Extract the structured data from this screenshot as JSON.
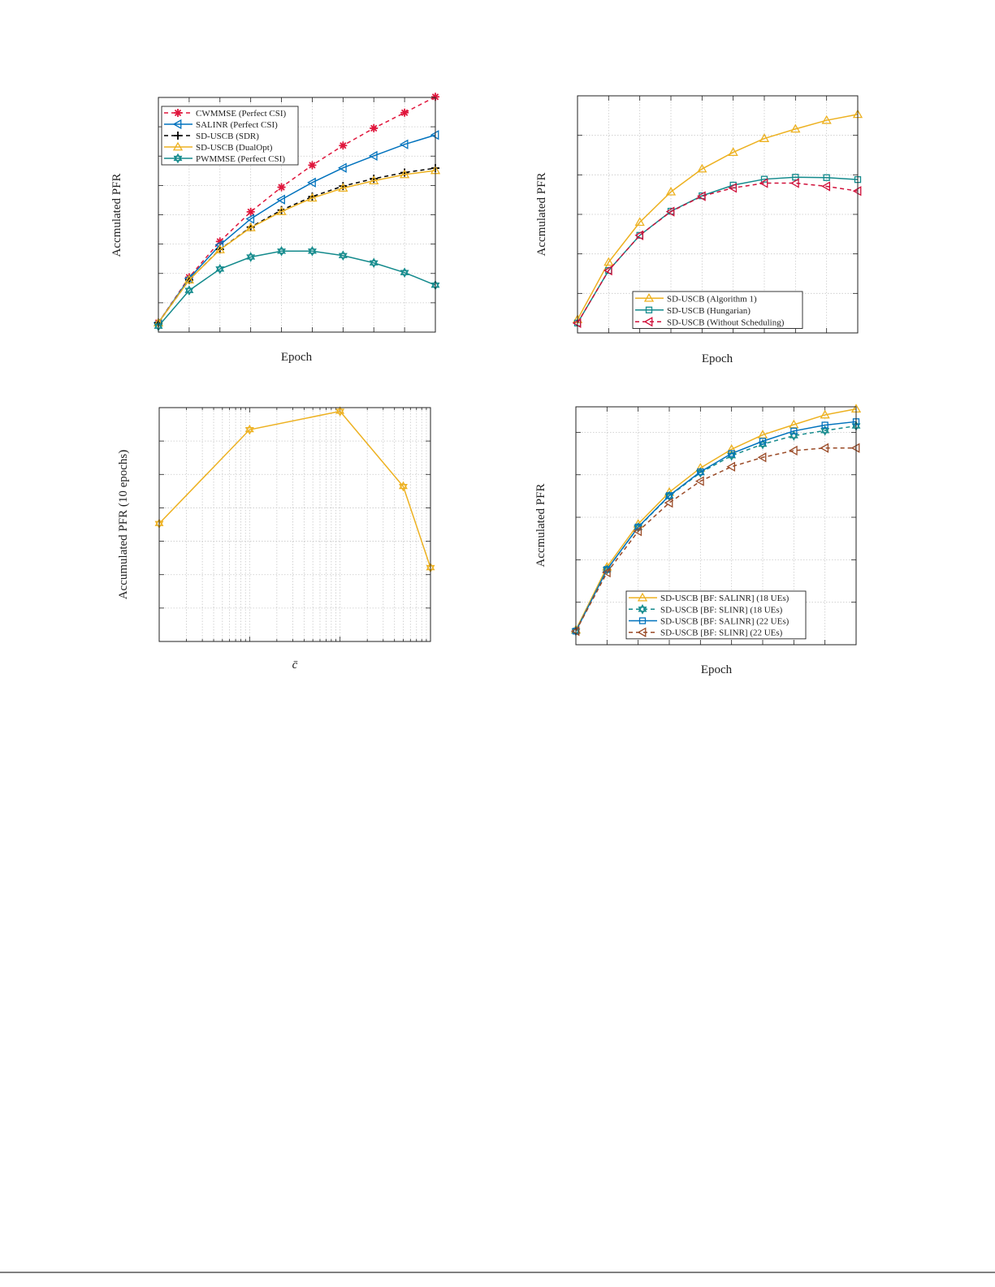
{
  "chart_data": [
    {
      "type": "line",
      "xlabel": "Epoch",
      "ylabel": "Accmulated PFR",
      "xscale": "linear",
      "xlim": [
        1,
        10
      ],
      "ylim": [
        0,
        8
      ],
      "grid": true,
      "tick_labels_shown": false,
      "legend": "top-left",
      "series": [
        {
          "name": "CWMMSE (Perfect CSI)",
          "color": "#e0163c",
          "marker": "asterisk",
          "dash": true,
          "x": [
            1,
            2,
            3,
            4,
            5,
            6,
            7,
            8,
            9,
            10
          ],
          "y": [
            0.32,
            1.87,
            3.09,
            4.1,
            4.94,
            5.69,
            6.36,
            6.95,
            7.48,
            8.02
          ]
        },
        {
          "name": "SALINR (Perfect CSI)",
          "color": "#0072bd",
          "marker": "triangle-left",
          "dash": false,
          "x": [
            1,
            2,
            3,
            4,
            5,
            6,
            7,
            8,
            9,
            10
          ],
          "y": [
            0.32,
            1.83,
            2.97,
            3.86,
            4.52,
            5.1,
            5.6,
            6.01,
            6.4,
            6.72
          ]
        },
        {
          "name": "SD-USCB (SDR)",
          "color": "#000000",
          "marker": "plus",
          "dash": true,
          "x": [
            1,
            2,
            3,
            4,
            5,
            6,
            7,
            8,
            9,
            10
          ],
          "y": [
            0.32,
            1.78,
            2.82,
            3.58,
            4.16,
            4.62,
            4.98,
            5.23,
            5.44,
            5.59
          ]
        },
        {
          "name": "SD-USCB (DualOpt)",
          "color": "#edb120",
          "marker": "triangle-up",
          "dash": false,
          "x": [
            1,
            2,
            3,
            4,
            5,
            6,
            7,
            8,
            9,
            10
          ],
          "y": [
            0.32,
            1.78,
            2.81,
            3.56,
            4.11,
            4.57,
            4.91,
            5.16,
            5.37,
            5.51
          ]
        },
        {
          "name": "PWMMSE (Perfect CSI)",
          "color": "#138a8c",
          "marker": "hexagram",
          "dash": false,
          "x": [
            1,
            2,
            3,
            4,
            5,
            6,
            7,
            8,
            9,
            10
          ],
          "y": [
            0.2,
            1.42,
            2.15,
            2.56,
            2.76,
            2.76,
            2.61,
            2.36,
            2.03,
            1.6
          ]
        }
      ]
    },
    {
      "type": "line",
      "xlabel": "Epoch",
      "ylabel": "Accmulated PFR",
      "xscale": "linear",
      "xlim": [
        1,
        10
      ],
      "ylim": [
        0,
        6
      ],
      "grid": true,
      "tick_labels_shown": false,
      "legend": "bottom-center",
      "series": [
        {
          "name": "SD-USCB (Algorithm 1)",
          "color": "#edb120",
          "marker": "triangle-up",
          "dash": false,
          "x": [
            1,
            2,
            3,
            4,
            5,
            6,
            7,
            8,
            9,
            10
          ],
          "y": [
            0.34,
            1.79,
            2.8,
            3.57,
            4.15,
            4.57,
            4.92,
            5.16,
            5.38,
            5.53
          ]
        },
        {
          "name": "SD-USCB (Hungarian)",
          "color": "#138a8c",
          "marker": "square",
          "dash": false,
          "x": [
            1,
            2,
            3,
            4,
            5,
            6,
            7,
            8,
            9,
            10
          ],
          "y": [
            0.25,
            1.58,
            2.47,
            3.08,
            3.47,
            3.74,
            3.89,
            3.94,
            3.93,
            3.88
          ]
        },
        {
          "name": "SD-USCB (Without Scheduling)",
          "color": "#d0103a",
          "marker": "triangle-left",
          "dash": true,
          "x": [
            1,
            2,
            3,
            4,
            5,
            6,
            7,
            8,
            9,
            10
          ],
          "y": [
            0.25,
            1.58,
            2.47,
            3.07,
            3.46,
            3.67,
            3.79,
            3.79,
            3.71,
            3.59
          ]
        }
      ]
    },
    {
      "type": "line",
      "xlabel": "c̄",
      "ylabel": "Accumulated PFR (10 epochs)",
      "xscale": "log",
      "xlim": [
        1,
        1000
      ],
      "ylim": [
        0,
        7
      ],
      "grid": true,
      "tick_labels_shown": false,
      "legend": "none",
      "series": [
        {
          "color": "#edb120",
          "marker": "hexagram",
          "dash": false,
          "x": [
            1,
            10,
            100,
            500,
            1000
          ],
          "y": [
            3.53,
            6.34,
            6.89,
            4.64,
            2.21
          ]
        }
      ]
    },
    {
      "type": "line",
      "xlabel": "Epoch",
      "ylabel": "Accmulated PFR",
      "xscale": "linear",
      "xlim": [
        1,
        10
      ],
      "ylim": [
        0,
        5.6
      ],
      "grid": true,
      "tick_labels_shown": false,
      "legend": "bottom-center",
      "series": [
        {
          "name": "SD-USCB [BF: SALINR] (18 UEs)",
          "color": "#edb120",
          "marker": "triangle-up",
          "dash": false,
          "x": [
            1,
            2,
            3,
            4,
            5,
            6,
            7,
            8,
            9,
            10
          ],
          "y": [
            0.35,
            1.83,
            2.84,
            3.59,
            4.16,
            4.6,
            4.94,
            5.18,
            5.41,
            5.55
          ]
        },
        {
          "name": "SD-USCB [BF: SLINR] (18 UEs)",
          "color": "#138a8c",
          "marker": "hexagram",
          "dash": true,
          "x": [
            1,
            2,
            3,
            4,
            5,
            6,
            7,
            8,
            9,
            10
          ],
          "y": [
            0.32,
            1.77,
            2.76,
            3.5,
            4.05,
            4.45,
            4.72,
            4.92,
            5.04,
            5.15
          ]
        },
        {
          "name": "SD-USCB [BF: SALINR] (22 UEs)",
          "color": "#0072bd",
          "marker": "square",
          "dash": false,
          "x": [
            1,
            2,
            3,
            4,
            5,
            6,
            7,
            8,
            9,
            10
          ],
          "y": [
            0.32,
            1.77,
            2.77,
            3.51,
            4.07,
            4.5,
            4.79,
            5.03,
            5.17,
            5.25
          ]
        },
        {
          "name": "SD-USCB [BF: SLINR] (22 UEs)",
          "color": "#9a4a26",
          "marker": "triangle-left",
          "dash": true,
          "x": [
            1,
            2,
            3,
            4,
            5,
            6,
            7,
            8,
            9,
            10
          ],
          "y": [
            0.32,
            1.7,
            2.67,
            3.34,
            3.85,
            4.19,
            4.41,
            4.57,
            4.63,
            4.63
          ]
        }
      ]
    }
  ]
}
